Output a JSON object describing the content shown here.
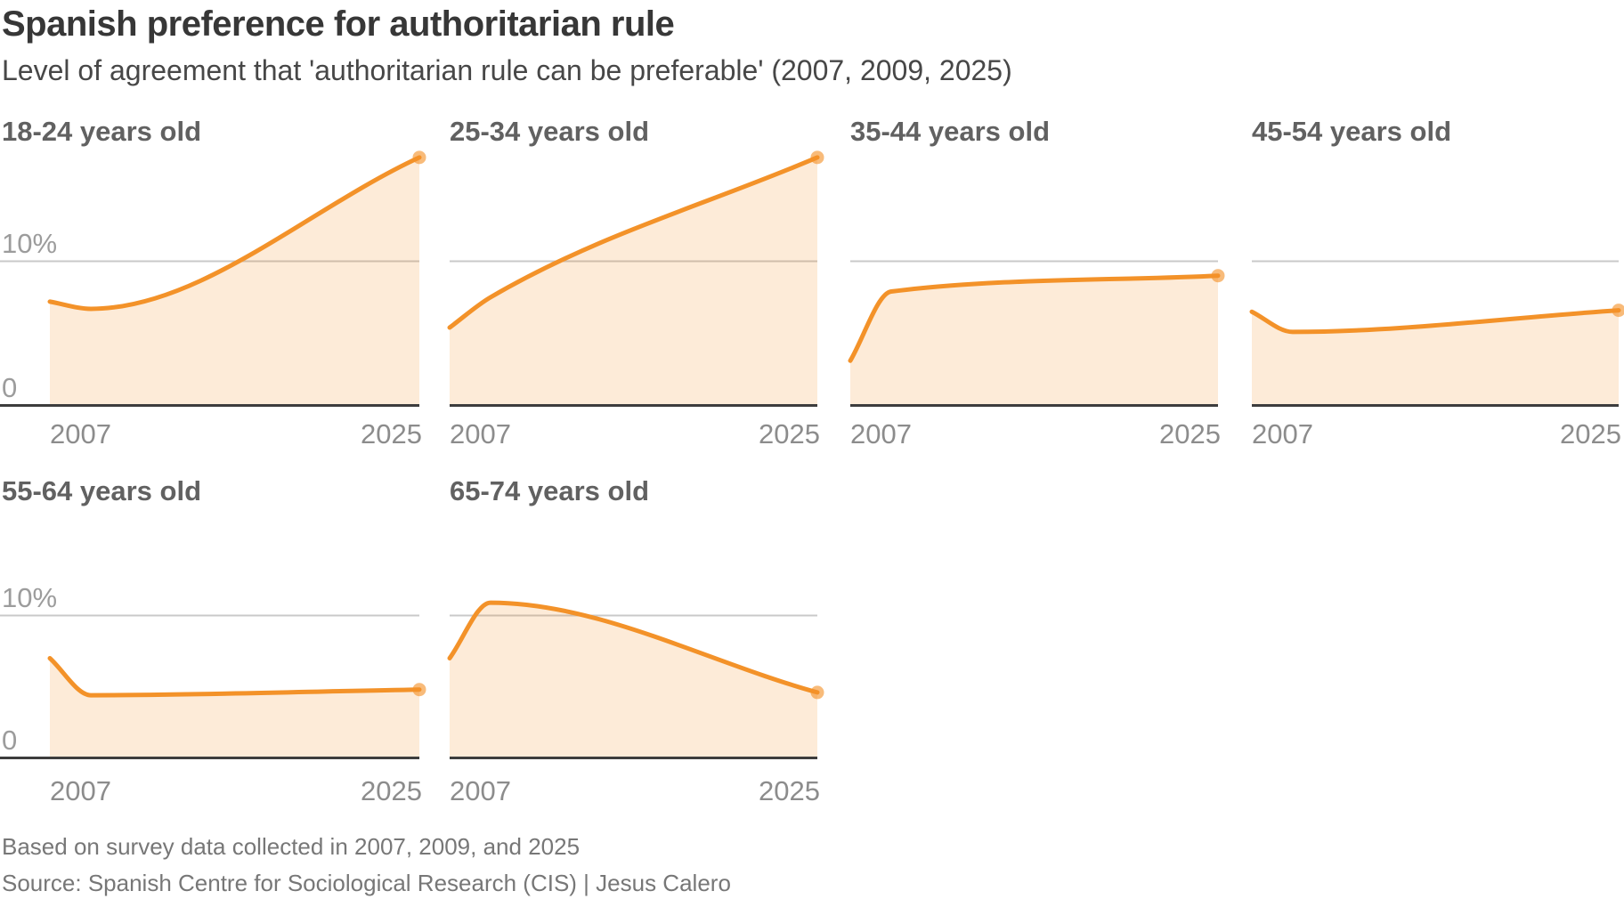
{
  "header": {
    "title": "Spanish preference for authoritarian rule",
    "subtitle": "Level of agreement that 'authoritarian rule can be preferable' (2007, 2009, 2025)"
  },
  "footer": {
    "note": "Based on survey data collected in 2007, 2009, and 2025",
    "source": "Source: Spanish Centre for Sociological Research (CIS) | Jesus Calero"
  },
  "colors": {
    "line": "#f39229",
    "area_fill": "rgba(243,146,41,0.18)",
    "endpoint_marker": "rgba(243,146,41,0.62)",
    "gridline": "#c9c9c9",
    "axis": "#3d3d3d",
    "x_tick_text": "#8c8c8c",
    "y_label_text": "#9c9c9c"
  },
  "chart_data": {
    "type": "area",
    "x": [
      2007,
      2009,
      2025
    ],
    "x_tick_labels": [
      "2007",
      "2025"
    ],
    "y_gridline": {
      "value": 10,
      "label": "10%"
    },
    "y_baseline": {
      "value": 0,
      "label": "0"
    },
    "ylim": [
      0,
      19
    ],
    "xlim": [
      2007,
      2025
    ],
    "grid": "single 10% gridline per panel, dark zero baseline",
    "legend_position": "none",
    "panels": [
      {
        "label": "18-24 years old",
        "values": [
          7.2,
          6.7,
          17.2
        ]
      },
      {
        "label": "25-34 years old",
        "values": [
          5.4,
          7.5,
          17.2
        ]
      },
      {
        "label": "35-44 years old",
        "values": [
          3.1,
          7.9,
          9.0
        ]
      },
      {
        "label": "45-54 years old",
        "values": [
          6.5,
          5.1,
          6.6
        ]
      },
      {
        "label": "55-64 years old",
        "values": [
          7.0,
          4.4,
          4.8
        ]
      },
      {
        "label": "65-74 years old",
        "values": [
          7.0,
          10.9,
          4.6
        ]
      }
    ]
  }
}
